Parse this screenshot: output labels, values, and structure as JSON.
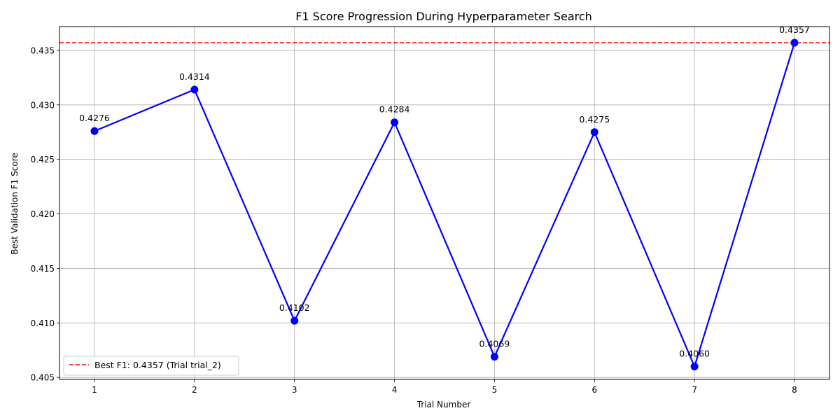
{
  "chart_data": {
    "type": "line",
    "title": "F1 Score Progression During Hyperparameter Search",
    "xlabel": "Trial Number",
    "ylabel": "Best Validation F1 Score",
    "x": [
      1,
      2,
      3,
      4,
      5,
      6,
      7,
      8
    ],
    "series": [
      {
        "values": [
          0.4276,
          0.4314,
          0.4102,
          0.4284,
          0.4069,
          0.4275,
          0.406,
          0.4357
        ],
        "labels": [
          "0.4276",
          "0.4314",
          "0.4102",
          "0.4284",
          "0.4069",
          "0.4275",
          "0.4060",
          "0.4357"
        ],
        "color": "#0000ff"
      }
    ],
    "reference_line": {
      "value": 0.4357,
      "label": "Best F1: 0.4357 (Trial trial_2)",
      "color": "#ff0000",
      "style": "dashed"
    },
    "xlim": [
      0.65,
      8.35
    ],
    "ylim": [
      0.40482,
      0.43718
    ],
    "xticks": [
      1,
      2,
      3,
      4,
      5,
      6,
      7,
      8
    ],
    "xtick_labels": [
      "1",
      "2",
      "3",
      "4",
      "5",
      "6",
      "7",
      "8"
    ],
    "yticks": [
      0.405,
      0.41,
      0.415,
      0.42,
      0.425,
      0.43,
      0.435
    ],
    "ytick_labels": [
      "0.405",
      "0.410",
      "0.415",
      "0.420",
      "0.425",
      "0.430",
      "0.435"
    ],
    "grid": true,
    "legend_position": "lower-left"
  }
}
